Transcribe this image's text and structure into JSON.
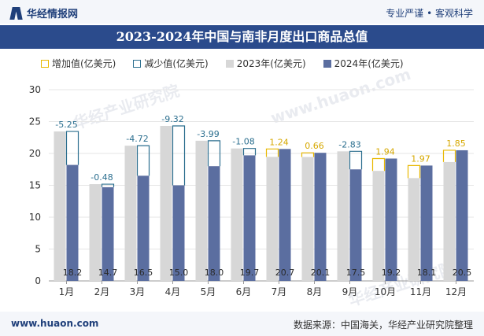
{
  "header": {
    "logo_text": "华经情报网",
    "tagline": "专业严谨 • 客观科学"
  },
  "title": "2023-2024年中国与南非月度出口商品总值",
  "legend": {
    "increase": "增加值(亿美元)",
    "decrease": "减少值(亿美元)",
    "y2023": "2023年(亿美元)",
    "y2024": "2024年(亿美元)"
  },
  "footer": {
    "site": "www.huaon.com",
    "source": "数据来源：中国海关，华经产业研究院整理"
  },
  "watermark": {
    "text": "华经产业研究院",
    "url": "www.huaon.com"
  },
  "colors": {
    "bar2023": "#d7d7d7",
    "bar2024": "#5b6ea0",
    "increase": "#e8b800",
    "decrease": "#2c6f8f"
  },
  "chart_data": {
    "type": "bar",
    "title": "2023-2024年中国与南非月度出口商品总值",
    "categories": [
      "1月",
      "2月",
      "3月",
      "4月",
      "5月",
      "6月",
      "7月",
      "8月",
      "9月",
      "10月",
      "11月",
      "12月"
    ],
    "series": [
      {
        "name": "2023年(亿美元)",
        "values": [
          23.45,
          15.18,
          21.22,
          24.32,
          21.99,
          20.78,
          19.46,
          19.44,
          20.33,
          17.26,
          16.13,
          18.65
        ]
      },
      {
        "name": "2024年(亿美元)",
        "values": [
          18.2,
          14.7,
          16.5,
          15.0,
          18.0,
          19.7,
          20.7,
          20.1,
          17.5,
          19.2,
          18.1,
          20.5
        ]
      }
    ],
    "change_labels": [
      "-5.25",
      "-0.48",
      "-4.72",
      "-9.32",
      "-3.99",
      "-1.08",
      "1.24",
      "0.66",
      "-2.83",
      "1.94",
      "1.97",
      "1.85"
    ],
    "value_labels_2024": [
      "18.2",
      "14.7",
      "16.5",
      "15.0",
      "18.0",
      "19.7",
      "20.7",
      "20.1",
      "17.5",
      "19.2",
      "18.1",
      "20.5"
    ],
    "ylim": [
      0,
      30
    ],
    "yticks": [
      0,
      5,
      10,
      15,
      20,
      25,
      30
    ],
    "xlabel": "",
    "ylabel": ""
  }
}
